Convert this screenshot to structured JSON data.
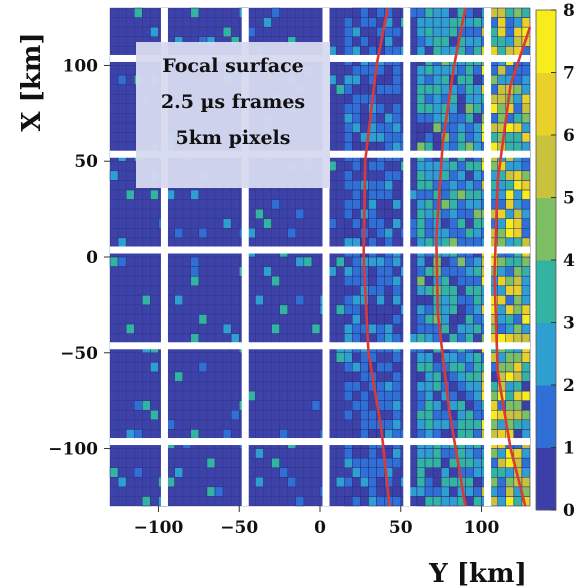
{
  "chart_data": {
    "type": "heatmap",
    "xlabel": "Y [km]",
    "ylabel": "X [km]",
    "xlim": [
      -130,
      130
    ],
    "ylim": [
      -130,
      130
    ],
    "xticks": [
      -100,
      -50,
      0,
      50,
      100
    ],
    "yticks": [
      -100,
      -50,
      0,
      50,
      100
    ],
    "x_tick_labels": [
      "−100",
      "−50",
      "0",
      "50",
      "100"
    ],
    "y_tick_labels": [
      "−100",
      "−50",
      "0",
      "50",
      "100"
    ],
    "colorbar": {
      "range": [
        0,
        8
      ],
      "ticks": [
        0,
        1,
        2,
        3,
        4,
        5,
        6,
        7,
        8
      ],
      "tick_labels": [
        "0",
        "1",
        "2",
        "3",
        "4",
        "5",
        "6",
        "7",
        "8"
      ],
      "colors": [
        "#3d3fa8",
        "#2f6fd6",
        "#2e9fd0",
        "#33b3a2",
        "#7dbf63",
        "#c9c23c",
        "#e9d12a",
        "#f7ec1c"
      ]
    },
    "background_color": "#3c42a8",
    "annotation_lines": [
      "Focal surface",
      "2.5 µs frames",
      "5km pixels"
    ],
    "gaps_x": [
      -100,
      -50,
      0,
      50,
      100
    ],
    "gaps_y": [
      -100,
      -50,
      0,
      50,
      100
    ],
    "track_color": "#d83a3a",
    "tracks": [
      {
        "points": [
          [
            43,
            -130
          ],
          [
            38,
            -90
          ],
          [
            30,
            -50
          ],
          [
            27,
            0
          ],
          [
            28,
            50
          ],
          [
            35,
            100
          ],
          [
            42,
            130
          ]
        ]
      },
      {
        "points": [
          [
            90,
            -130
          ],
          [
            80,
            -80
          ],
          [
            73,
            -30
          ],
          [
            72,
            10
          ],
          [
            76,
            60
          ],
          [
            83,
            100
          ],
          [
            90,
            130
          ]
        ]
      },
      {
        "points": [
          [
            127,
            -130
          ],
          [
            118,
            -100
          ],
          [
            110,
            -60
          ],
          [
            108,
            -10
          ],
          [
            110,
            40
          ],
          [
            118,
            90
          ],
          [
            130,
            120
          ]
        ]
      }
    ],
    "hot_regions": [
      {
        "x": [
          100,
          130
        ],
        "y": [
          -130,
          130
        ],
        "mean": 4.2
      },
      {
        "x": [
          60,
          100
        ],
        "y": [
          -130,
          130
        ],
        "mean": 2.3
      },
      {
        "x": [
          15,
          50
        ],
        "y": [
          -130,
          130
        ],
        "mean": 1.3
      }
    ]
  }
}
